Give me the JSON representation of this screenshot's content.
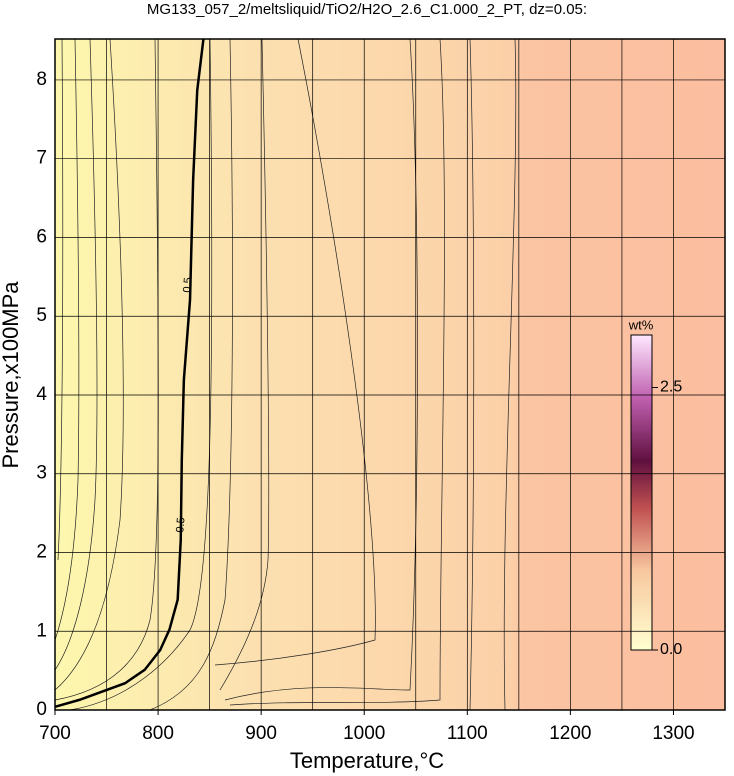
{
  "chart_data": {
    "type": "contour",
    "title": "MG133_057_2/meltsliquid/TiO2/H2O_2.6_C1.000_2_PT, dz=0.05:",
    "x_label": "Temperature,°C",
    "y_label": "Pressure,x100MPa",
    "xlim": [
      700,
      1350
    ],
    "ylim": [
      0,
      8.52
    ],
    "xticks": [
      700,
      800,
      900,
      1000,
      1100,
      1200,
      1300
    ],
    "yticks": [
      0,
      1,
      2,
      3,
      4,
      5,
      6,
      7,
      8
    ],
    "xgrid_step": 50,
    "grid": true,
    "series": [
      {
        "name": "0.5",
        "x": [
          700,
          724,
          768,
          787,
          802,
          811,
          819,
          822,
          823,
          825,
          831,
          834,
          838,
          844
        ],
        "y": [
          0.04,
          0.13,
          0.34,
          0.51,
          0.76,
          1.02,
          1.4,
          2.16,
          3.17,
          4.19,
          5.21,
          6.73,
          7.87,
          8.52
        ],
        "color": "#000000"
      }
    ],
    "contour_labels": [
      "0.5",
      "0.5"
    ],
    "colorbar": {
      "label": "wt%",
      "clim": [
        0,
        3.0
      ],
      "ticks": [
        {
          "value": 0,
          "label": "0.0"
        },
        {
          "value": 2.5,
          "label": "2.5"
        }
      ]
    }
  }
}
